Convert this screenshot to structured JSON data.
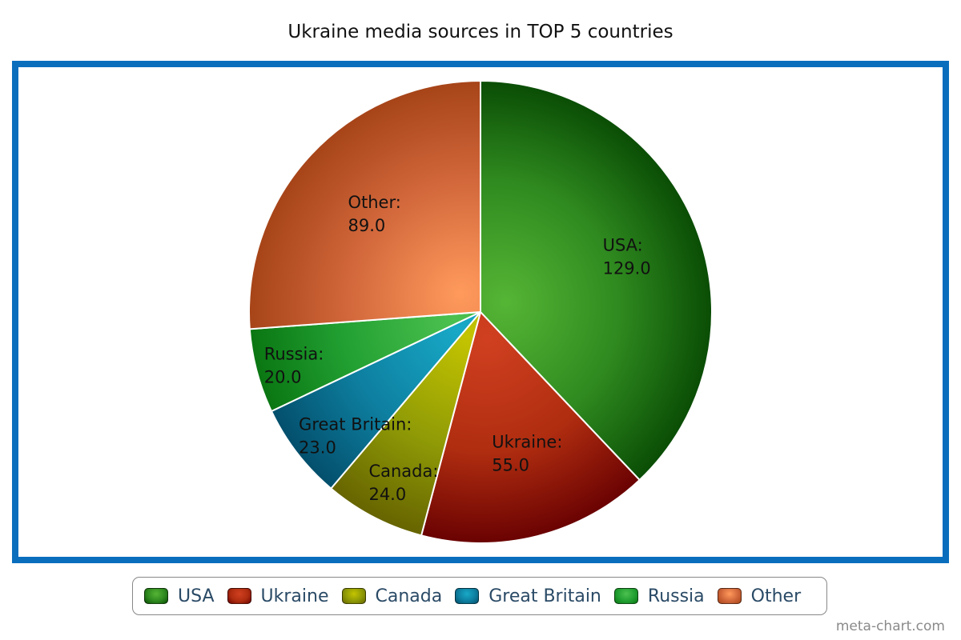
{
  "chart_data": {
    "type": "pie",
    "title": "Ukraine media sources in TOP 5 countries",
    "slices": [
      {
        "name": "USA",
        "value": 129.0,
        "value_label": "129.0",
        "color": "#2f8a1f",
        "color_light": "#55b535",
        "color_dark": "#0a4d05"
      },
      {
        "name": "Ukraine",
        "value": 55.0,
        "value_label": "55.0",
        "color": "#b02d10",
        "color_light": "#d04020",
        "color_dark": "#6a0202"
      },
      {
        "name": "Canada",
        "value": 24.0,
        "value_label": "24.0",
        "color": "#8f9a06",
        "color_light": "#c4c400",
        "color_dark": "#666400"
      },
      {
        "name": "Great Britain",
        "value": 23.0,
        "value_label": "23.0",
        "color": "#0e7fa0",
        "color_light": "#18a9c7",
        "color_dark": "#034f6c"
      },
      {
        "name": "Russia",
        "value": 20.0,
        "value_label": "20.0",
        "color": "#22a032",
        "color_light": "#4cc150",
        "color_dark": "#0a7612"
      },
      {
        "name": "Other",
        "value": 89.0,
        "value_label": "89.0",
        "color": "#d0663a",
        "color_light": "#ff9a5c",
        "color_dark": "#a64418"
      }
    ],
    "legend_position": "bottom",
    "border_color": "#0a6ebd"
  },
  "watermark": "meta-chart.com"
}
